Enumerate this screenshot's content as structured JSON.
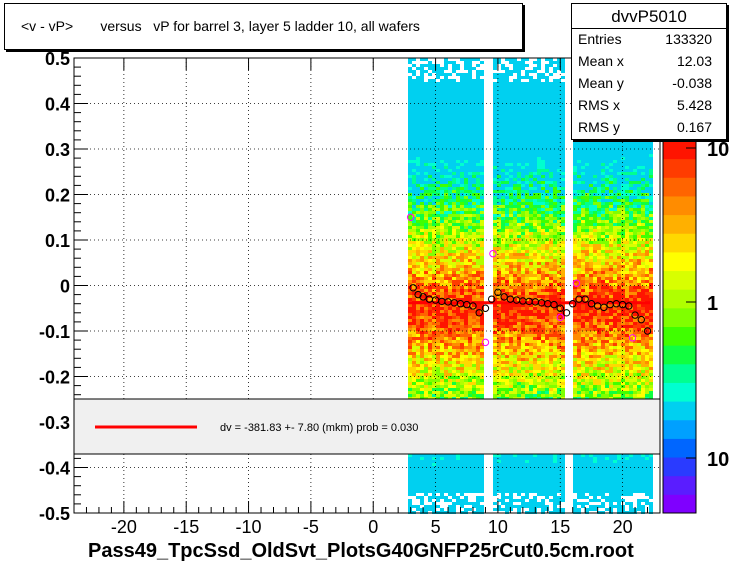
{
  "title": "<v - vP>       versus   vP for barrel 3, layer 5 ladder 10, all wafers",
  "stats": {
    "name": "dvvP5010",
    "rows": [
      {
        "label": "Entries",
        "value": "133320"
      },
      {
        "label": "Mean x",
        "value": "12.03"
      },
      {
        "label": "Mean y",
        "value": "-0.038"
      },
      {
        "label": "RMS x",
        "value": "5.428"
      },
      {
        "label": "RMS y",
        "value": "0.167"
      }
    ]
  },
  "fit_label": "dv = -381.83 +-  7.80 (mkm) prob = 0.030",
  "x_title": "Pass49_TpcSsd_OldSvt_PlotsG40GNFP25rCut0.5cm.root",
  "colors": {
    "fit_line": "#ff0000",
    "profile_marker": "#000000",
    "profile_marker_alt": "#ff00ff",
    "legend_fill": "#f0f0f0"
  },
  "chart_data": {
    "type": "heatmap",
    "xlim": [
      -24,
      23
    ],
    "ylim": [
      -0.5,
      0.5
    ],
    "x_ticks": [
      -20,
      -15,
      -10,
      -5,
      0,
      5,
      10,
      15,
      20
    ],
    "x_tick_labels": [
      "-20",
      "-15",
      "-10",
      "-5",
      "0",
      "5",
      "10",
      "15",
      "20"
    ],
    "y_ticks": [
      -0.5,
      -0.4,
      -0.3,
      -0.2,
      -0.1,
      0,
      0.1,
      0.2,
      0.3,
      0.4,
      0.5
    ],
    "y_tick_labels": [
      "-0.5",
      "-0.4",
      "-0.3",
      "-0.2",
      "-0.1",
      "0",
      "0.1",
      "0.2",
      "0.3",
      "0.4",
      "0.5"
    ],
    "grid": true,
    "log_z": true,
    "z_tick_labels": [
      "10",
      "1",
      "10"
    ],
    "occupied_x_ranges": [
      [
        2.8,
        8.8
      ],
      [
        9.6,
        15.2
      ],
      [
        16.0,
        22.2
      ]
    ],
    "profile_points": [
      {
        "x": 3.2,
        "y": -0.005
      },
      {
        "x": 3.6,
        "y": -0.02
      },
      {
        "x": 4.0,
        "y": -0.025
      },
      {
        "x": 4.5,
        "y": -0.03
      },
      {
        "x": 5.0,
        "y": -0.032
      },
      {
        "x": 5.5,
        "y": -0.035
      },
      {
        "x": 6.0,
        "y": -0.036
      },
      {
        "x": 6.5,
        "y": -0.038
      },
      {
        "x": 7.0,
        "y": -0.04
      },
      {
        "x": 7.5,
        "y": -0.042
      },
      {
        "x": 8.0,
        "y": -0.045
      },
      {
        "x": 8.5,
        "y": -0.06
      },
      {
        "x": 9.0,
        "y": -0.05
      },
      {
        "x": 9.5,
        "y": -0.03
      },
      {
        "x": 10.0,
        "y": -0.015
      },
      {
        "x": 10.5,
        "y": -0.025
      },
      {
        "x": 11.0,
        "y": -0.03
      },
      {
        "x": 11.5,
        "y": -0.032
      },
      {
        "x": 12.0,
        "y": -0.034
      },
      {
        "x": 12.5,
        "y": -0.035
      },
      {
        "x": 13.0,
        "y": -0.036
      },
      {
        "x": 13.5,
        "y": -0.038
      },
      {
        "x": 14.0,
        "y": -0.04
      },
      {
        "x": 14.5,
        "y": -0.042
      },
      {
        "x": 15.0,
        "y": -0.05
      },
      {
        "x": 15.5,
        "y": -0.06
      },
      {
        "x": 16.0,
        "y": -0.04
      },
      {
        "x": 16.5,
        "y": -0.03
      },
      {
        "x": 17.0,
        "y": -0.03
      },
      {
        "x": 17.5,
        "y": -0.04
      },
      {
        "x": 18.0,
        "y": -0.045
      },
      {
        "x": 18.5,
        "y": -0.048
      },
      {
        "x": 19.0,
        "y": -0.042
      },
      {
        "x": 19.5,
        "y": -0.04
      },
      {
        "x": 20.0,
        "y": -0.042
      },
      {
        "x": 20.5,
        "y": -0.045
      },
      {
        "x": 21.0,
        "y": -0.065
      },
      {
        "x": 21.5,
        "y": -0.075
      },
      {
        "x": 22.0,
        "y": -0.1
      }
    ],
    "outlier_points": [
      {
        "x": 3.0,
        "y": 0.15
      },
      {
        "x": 9.0,
        "y": -0.125
      },
      {
        "x": 9.6,
        "y": 0.07
      },
      {
        "x": 15.0,
        "y": -0.07
      },
      {
        "x": 16.3,
        "y": 0.005
      },
      {
        "x": 20.8,
        "y": -0.115
      }
    ],
    "fit": {
      "type": "constant",
      "y": -0.038,
      "x_range": [
        2.8,
        22.2
      ]
    }
  }
}
